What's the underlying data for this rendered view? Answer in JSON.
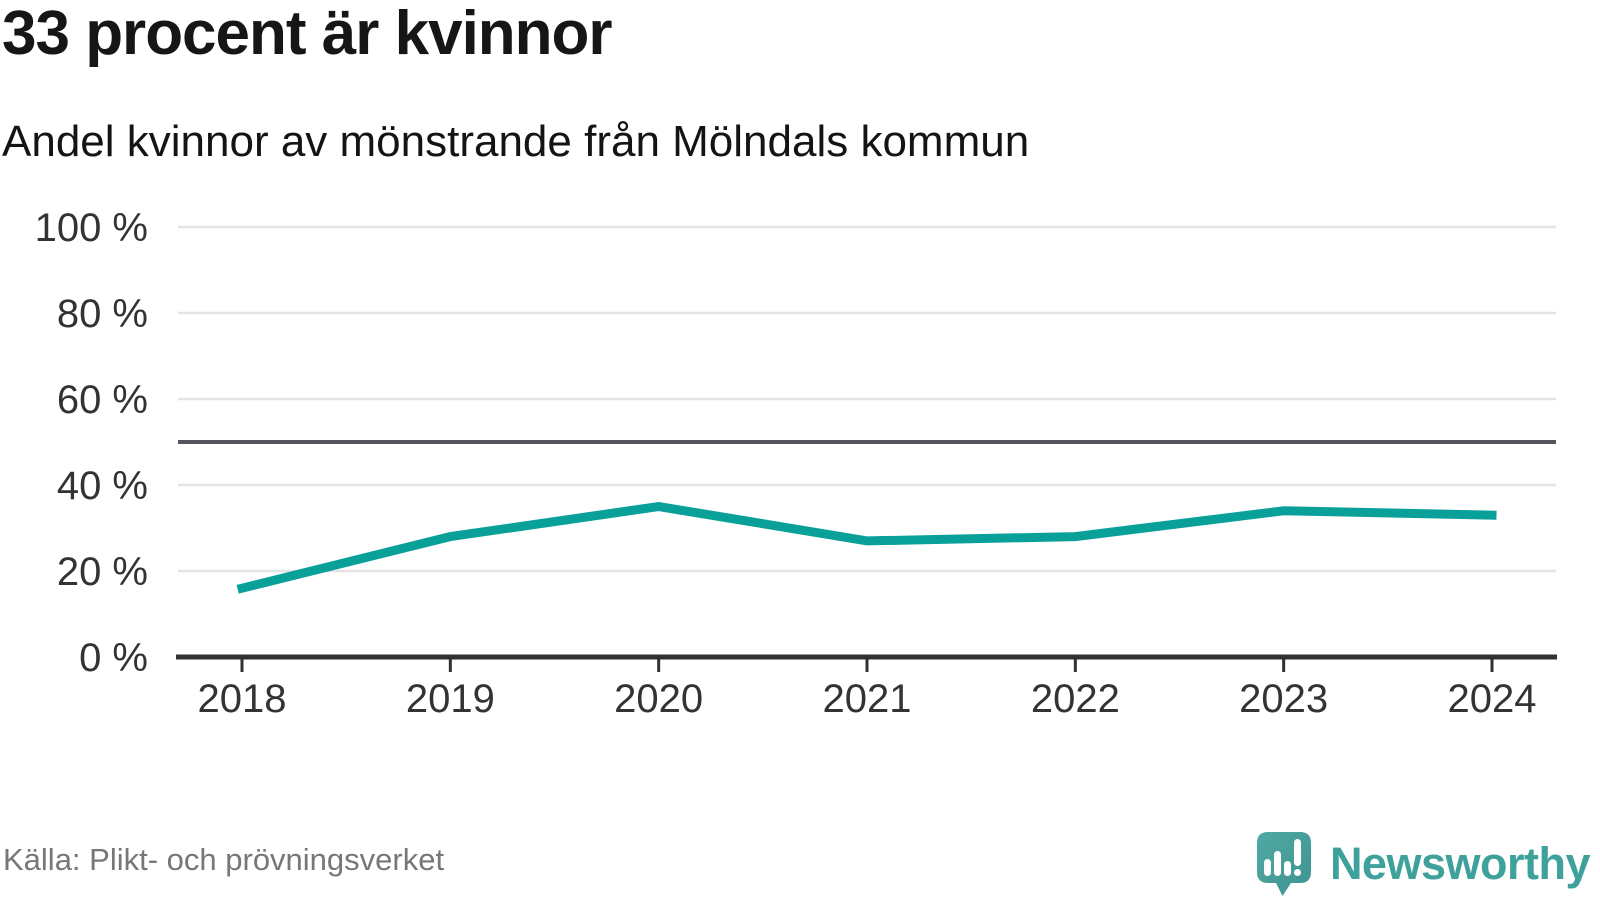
{
  "header": {
    "title": "33 procent är kvinnor",
    "subtitle": "Andel kvinnor av mönstrande från Mölndals kommun"
  },
  "footer": {
    "source": "Källa: Plikt- och prövningsverket",
    "brand": "Newsworthy"
  },
  "colors": {
    "line": "#0aa09a",
    "grid": "#e3e3e3",
    "reference_line": "#55565c",
    "axis": "#2f3133",
    "tick_text": "#333333",
    "title_text": "#161616",
    "source_text": "#76777a",
    "brand_teal": "#3fa19c",
    "logo_fill_top": "#51a9a4",
    "logo_fill_bottom": "#3e948f"
  },
  "chart_data": {
    "type": "line",
    "title": "33 procent är kvinnor",
    "subtitle": "Andel kvinnor av mönstrande från Mölndals kommun",
    "categories": [
      "2018",
      "2019",
      "2020",
      "2021",
      "2022",
      "2023",
      "2024"
    ],
    "series": [
      {
        "name": "Andel kvinnor av mönstrande",
        "values": [
          16,
          28,
          35,
          27,
          28,
          34,
          33
        ]
      }
    ],
    "unit": "%",
    "xlabel": "",
    "ylabel": "",
    "ylim": [
      0,
      100
    ],
    "y_ticks": [
      0,
      20,
      40,
      60,
      80,
      100
    ],
    "y_tick_suffix": " %",
    "reference_line_y": 50,
    "grid": true,
    "legend": "none",
    "source": "Källa: Plikt- och prövningsverket"
  }
}
